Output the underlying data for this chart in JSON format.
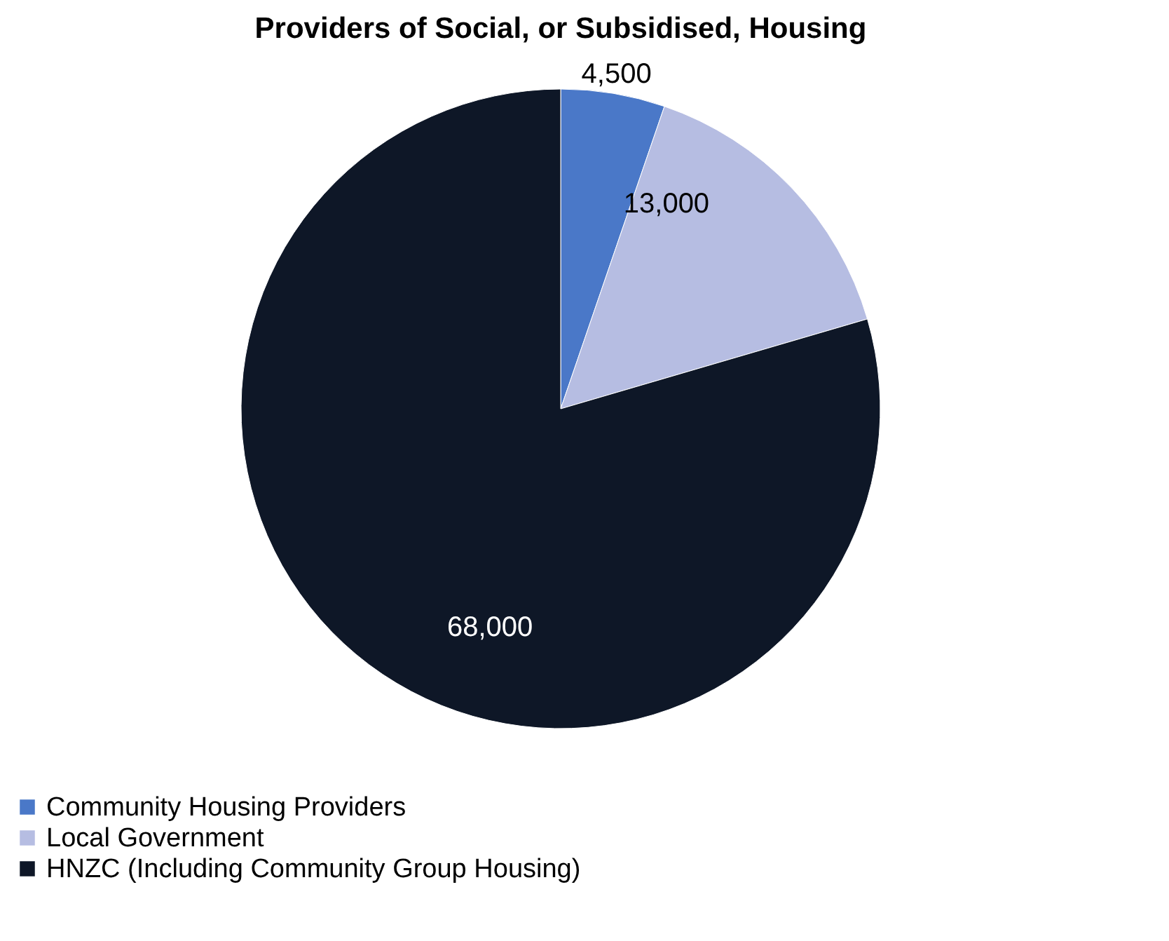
{
  "chart_data": {
    "type": "pie",
    "title": "Providers of Social, or Subsidised,  Housing",
    "categories": [
      "Community Housing Providers",
      "Local Government",
      "HNZC (Including Community Group Housing)"
    ],
    "values": [
      4500,
      13000,
      68000
    ],
    "colors": [
      "#4a78c8",
      "#b6bde2",
      "#0e1727"
    ],
    "value_labels": [
      "4,500",
      "13,000",
      "68,000"
    ],
    "legend": "bottom"
  }
}
